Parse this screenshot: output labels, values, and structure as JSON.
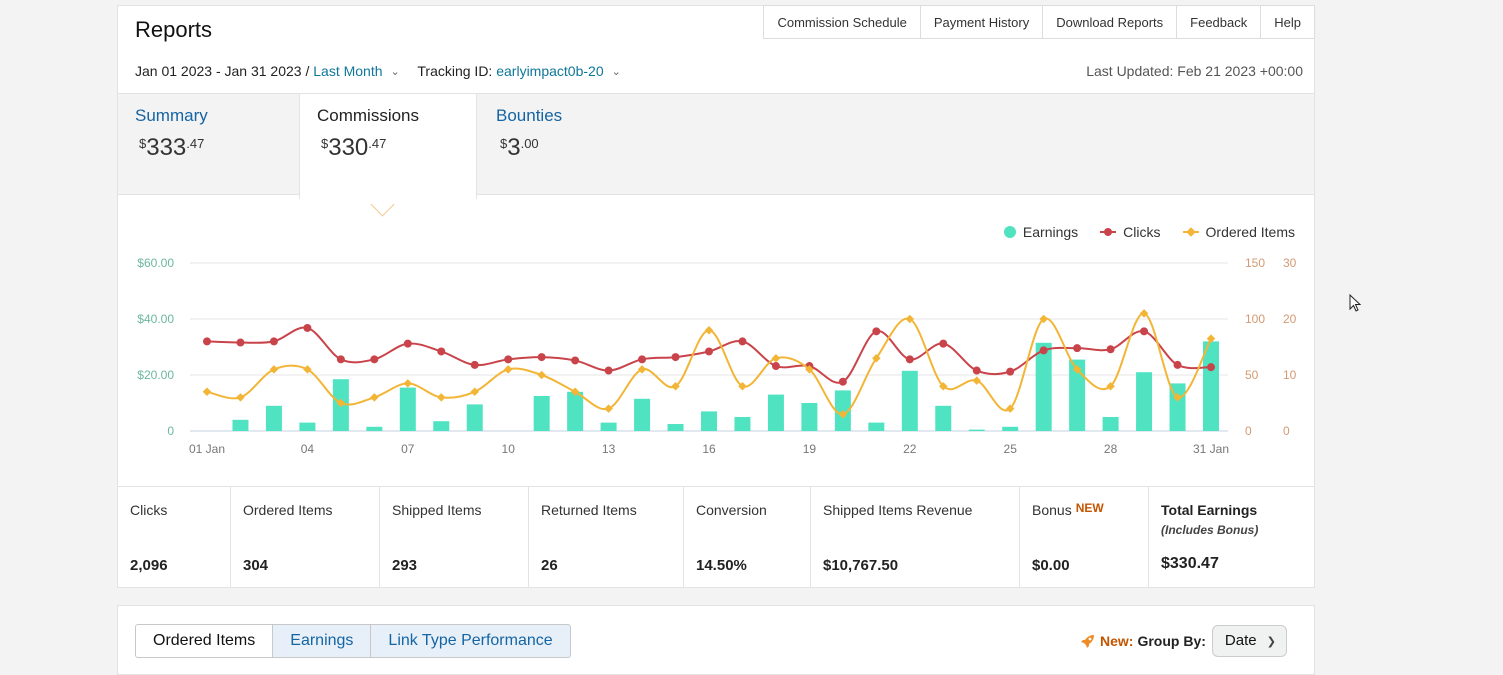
{
  "header": {
    "title": "Reports",
    "links": [
      "Commission Schedule",
      "Payment History",
      "Download Reports",
      "Feedback",
      "Help"
    ],
    "date_range": "Jan 01 2023 - Jan 31 2023 /",
    "period": "Last Month",
    "tracking_label": "Tracking ID:",
    "tracking_id": "earlyimpact0b-20",
    "last_updated": "Last Updated: Feb 21 2023 +00:00"
  },
  "tabs": [
    {
      "name": "Summary",
      "currency": "$",
      "whole": "333",
      "cents": ".47"
    },
    {
      "name": "Commissions",
      "currency": "$",
      "whole": "330",
      "cents": ".47"
    },
    {
      "name": "Bounties",
      "currency": "$",
      "whole": "3",
      "cents": ".00"
    }
  ],
  "stats": [
    {
      "label": "Clicks",
      "value": "2,096"
    },
    {
      "label": "Ordered Items",
      "value": "304"
    },
    {
      "label": "Shipped Items",
      "value": "293"
    },
    {
      "label": "Returned Items",
      "value": "26"
    },
    {
      "label": "Conversion",
      "value": "14.50%"
    },
    {
      "label": "Shipped Items Revenue",
      "value": "$10,767.50"
    },
    {
      "label": "Bonus",
      "badge": "NEW",
      "value": "$0.00"
    },
    {
      "label": "Total Earnings",
      "sub": "(Includes Bonus)",
      "value": "$330.47"
    }
  ],
  "bottom": {
    "tabs": [
      "Ordered Items",
      "Earnings",
      "Link Type Performance"
    ],
    "new_label": "New:",
    "group_by_label": "Group By:",
    "group_by_value": "Date"
  },
  "colors": {
    "earnings": "#50e3c2",
    "clicks": "#c9444a",
    "ordered": "#f2b536",
    "link": "#0f7799"
  },
  "icons": {
    "group_by": "rocket-icon"
  },
  "chart_data": {
    "type": "bar",
    "legend": [
      "Earnings",
      "Clicks",
      "Ordered Items"
    ],
    "legend_position": "top-right",
    "x_ticks": [
      "01 Jan",
      "04",
      "07",
      "10",
      "13",
      "16",
      "19",
      "22",
      "25",
      "28",
      "31 Jan"
    ],
    "y_left_ticks": [
      "0",
      "$20.00",
      "$40.00",
      "$60.00"
    ],
    "y_right1_ticks": [
      "0",
      "50",
      "100",
      "150"
    ],
    "y_right2_ticks": [
      "0",
      "10",
      "20",
      "30"
    ],
    "ylim_earnings": [
      0,
      60
    ],
    "ylim_clicks": [
      0,
      150
    ],
    "ylim_ordered": [
      0,
      30
    ],
    "grid": true,
    "series": [
      {
        "name": "Earnings",
        "axis": "left",
        "type": "bar",
        "values": [
          0,
          4,
          9,
          3,
          18.5,
          1.5,
          15.5,
          3.5,
          9.5,
          0,
          12.5,
          14,
          3,
          11.5,
          2.5,
          7,
          5,
          13,
          10,
          14.5,
          3,
          21.5,
          9,
          0.5,
          1.5,
          31.5,
          25.5,
          5,
          21,
          17,
          32
        ]
      },
      {
        "name": "Clicks",
        "axis": "right1",
        "type": "line",
        "values": [
          80,
          79,
          80,
          92,
          64,
          64,
          78,
          71,
          59,
          64,
          66,
          63,
          54,
          64,
          66,
          71,
          80,
          58,
          58,
          44,
          89,
          64,
          78,
          54,
          53,
          72,
          74,
          73,
          89,
          59,
          57
        ]
      },
      {
        "name": "Ordered Items",
        "axis": "right2",
        "type": "line",
        "values": [
          7,
          6,
          11,
          11,
          5,
          6,
          8.5,
          6,
          7,
          11,
          10,
          7,
          4,
          11,
          8,
          18,
          8,
          13,
          11,
          3,
          13,
          20,
          8,
          9,
          4,
          20,
          11,
          8,
          21,
          6,
          16.5
        ]
      }
    ]
  }
}
